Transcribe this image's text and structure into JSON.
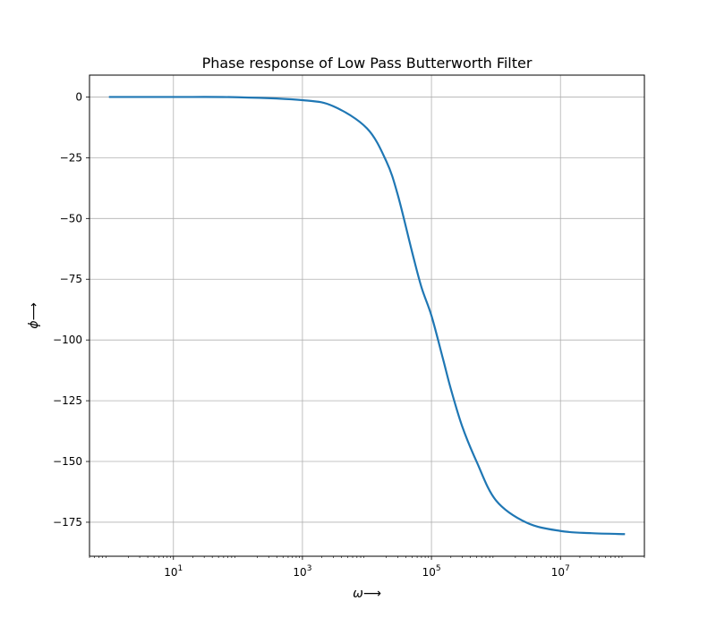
{
  "chart_data": {
    "type": "line",
    "title": "Phase response of Low Pass Butterworth Filter",
    "xlabel": "ω⟶",
    "ylabel": "ϕ⟶",
    "x_scale": "log",
    "xlim": [
      0.5,
      200000000
    ],
    "ylim": [
      -189,
      9
    ],
    "grid": true,
    "x_ticks": [
      {
        "value": 10,
        "base": "10",
        "exp": "1"
      },
      {
        "value": 1000,
        "base": "10",
        "exp": "3"
      },
      {
        "value": 100000,
        "base": "10",
        "exp": "5"
      },
      {
        "value": 10000000,
        "base": "10",
        "exp": "7"
      }
    ],
    "y_ticks": [
      0,
      -25,
      -50,
      -75,
      -100,
      -125,
      -150,
      -175
    ],
    "y_tick_labels": [
      "0",
      "−25",
      "−50",
      "−75",
      "−100",
      "−125",
      "−150",
      "−175"
    ],
    "series": [
      {
        "color": "#1f77b4",
        "x": [
          1,
          10,
          100,
          1000,
          3000,
          10000,
          20000,
          30000,
          50000,
          70000,
          100000,
          150000,
          200000,
          300000,
          500000,
          1000000,
          3000000,
          10000000,
          30000000,
          100000000
        ],
        "y": [
          0,
          0,
          -0.1,
          -1.3,
          -3.8,
          -12.9,
          -26.5,
          -40.2,
          -63.7,
          -78.3,
          -90.0,
          -107.5,
          -120.2,
          -135.6,
          -150.0,
          -166.0,
          -175.2,
          -178.6,
          -179.5,
          -179.9
        ]
      }
    ]
  }
}
